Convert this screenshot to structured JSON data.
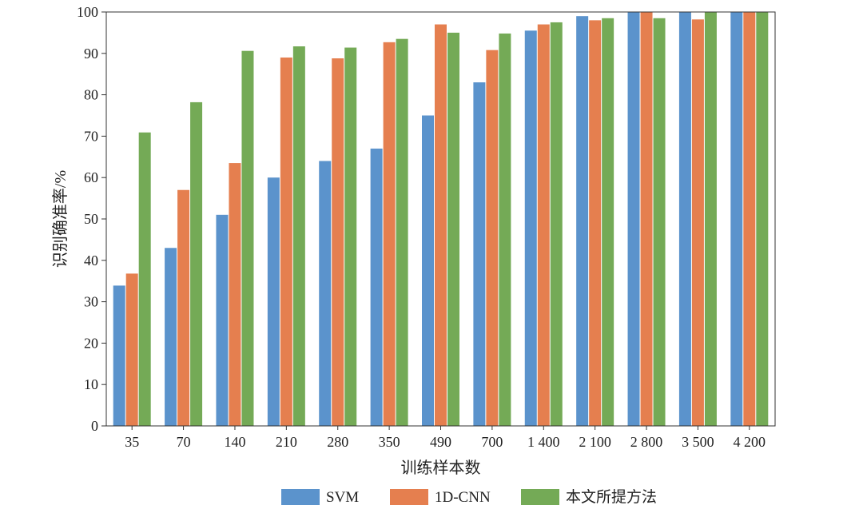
{
  "chart_data": {
    "type": "bar",
    "title": "",
    "xlabel": "训练样本数",
    "ylabel": "识别确准率/%",
    "ylim": [
      0,
      100
    ],
    "yticks": [
      0,
      10,
      20,
      30,
      40,
      50,
      60,
      70,
      80,
      90,
      100
    ],
    "categories": [
      "35",
      "70",
      "140",
      "210",
      "280",
      "350",
      "490",
      "700",
      "1 400",
      "2 100",
      "2 800",
      "3 500",
      "4 200"
    ],
    "series": [
      {
        "name": "SVM",
        "color": "#5b93cc",
        "values": [
          33.9,
          43,
          51,
          60,
          64,
          67,
          75,
          83,
          95.5,
          99,
          100,
          100,
          100
        ]
      },
      {
        "name": "1D-CNN",
        "color": "#e57f4f",
        "values": [
          36.8,
          57,
          63.5,
          89,
          88.8,
          92.7,
          97,
          90.8,
          97,
          98,
          100,
          98.2,
          100
        ]
      },
      {
        "name": "本文所提方法",
        "color": "#74aa56",
        "values": [
          70.9,
          78.2,
          90.6,
          91.7,
          91.4,
          93.5,
          95,
          94.8,
          97.5,
          98.5,
          98.5,
          100,
          100
        ]
      }
    ],
    "legend_position": "bottom",
    "grid": false
  }
}
